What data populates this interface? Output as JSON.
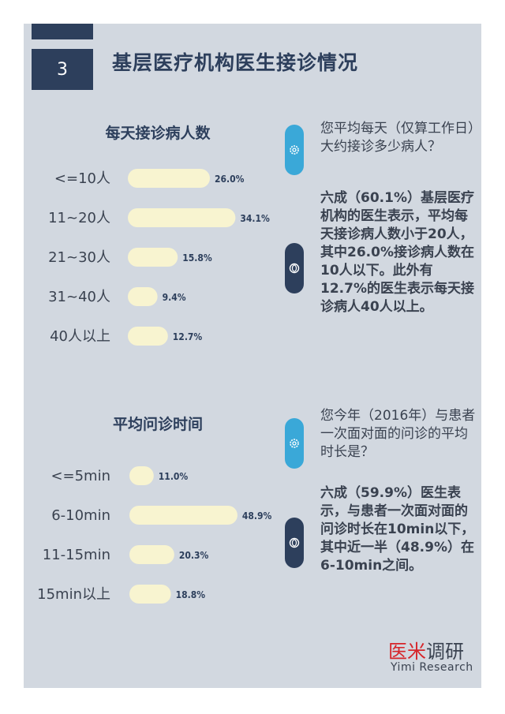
{
  "section_number": "3",
  "page_title": "基层医疗机构医生接诊情况",
  "chart1": {
    "title": "每天接诊病人数",
    "question": "您平均每天（仅算工作日）大约接诊多少病人？",
    "answer": "六成（60.1%）基层医疗机构的医生表示，平均每天接诊病人数小于20人，其中26.0%接诊病人数在10人以下。此外有12.7%的医生表示每天接诊病人40人以上。"
  },
  "chart2": {
    "title": "平均问诊时间",
    "question": "您今年（2016年）与患者一次面对面的问诊的平均时长是？",
    "answer": "六成（59.9%）医生表示，与患者一次面对面的问诊时长在10min以下，其中近一半（48.9%）在6-10min之间。"
  },
  "chart_data": [
    {
      "type": "bar",
      "title": "每天接诊病人数",
      "categories": [
        "<=10人",
        "11~20人",
        "21~30人",
        "31~40人",
        "40人以上"
      ],
      "values": [
        26.0,
        34.1,
        15.8,
        9.4,
        12.7
      ],
      "value_labels": [
        "26.0%",
        "34.1%",
        "15.8%",
        "9.4%",
        "12.7%"
      ],
      "unit": "%"
    },
    {
      "type": "bar",
      "title": "平均问诊时间",
      "categories": [
        "<=5min",
        "6-10min",
        "11-15min",
        "15min以上"
      ],
      "values": [
        11.0,
        48.9,
        20.3,
        18.8
      ],
      "value_labels": [
        "11.0%",
        "48.9%",
        "20.3%",
        "18.8%"
      ],
      "unit": "%"
    }
  ],
  "colors": {
    "navy": "#2d3f5c",
    "bar_fill": "#f8f4d0",
    "icon_light": "#3aa8d8",
    "panel_bg": "#d2d8e0",
    "brand_red": "#d6252a"
  },
  "icons": [
    "gear-icon",
    "lens-icon"
  ],
  "brand": {
    "zh_red": "医米",
    "zh_dark": "调研",
    "en": "Yimi Research"
  }
}
